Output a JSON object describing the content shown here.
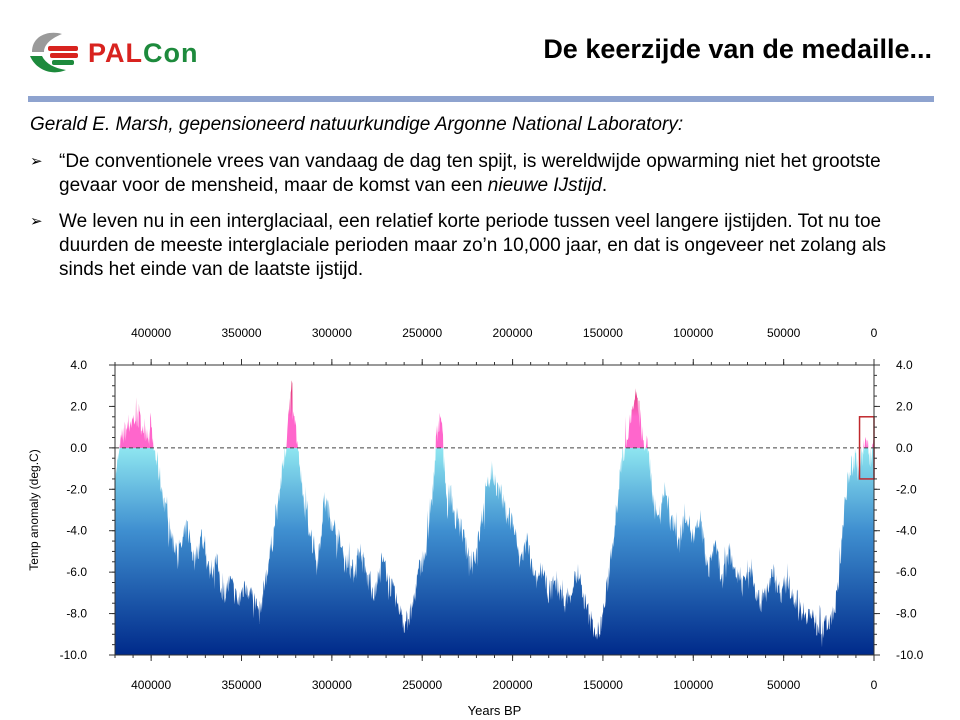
{
  "logo": {
    "part1": "PAL",
    "part2": "Con",
    "hand_colors": [
      "#d8231f",
      "#1d8a3c",
      "#9a9a9a"
    ]
  },
  "slide": {
    "title": "De keerzijde van de medaille...",
    "author": "Gerald E. Marsh, gepensioneerd natuurkundige Argonne National Laboratory:",
    "bullets": [
      {
        "text_before": "“De conventionele vrees van vandaag de dag ten spijt, is wereldwijde opwarming niet het grootste gevaar voor de mensheid, maar de komst van een ",
        "emphasis": "nieuwe IJstijd",
        "text_after": "."
      },
      {
        "text_before": "We leven nu in een interglaciaal, een relatief korte periode tussen veel langere ijstijden. Tot nu toe duurden de meeste interglaciale perioden maar zo’n 10,000 jaar, en dat is ongeveer net zolang als sinds het einde van de laatste ijstijd.",
        "emphasis": "",
        "text_after": ""
      }
    ]
  },
  "chart_data": {
    "type": "area",
    "xlabel": "Years BP",
    "ylabel": "Temp anomaly (deg.C)",
    "xlim": [
      420000,
      0
    ],
    "ylim": [
      -10,
      4
    ],
    "x_ticks": [
      400000,
      350000,
      300000,
      250000,
      200000,
      150000,
      100000,
      50000,
      0
    ],
    "y_ticks_left": [
      "4.0",
      "2.0",
      "0.0",
      "-2.0",
      "-4.0",
      "-6.0",
      "-8.0",
      "-10.0"
    ],
    "y_ticks_right": [
      "4.0",
      "2.0",
      "0.0",
      "-2.0",
      "-4.0",
      "-6.0",
      "-8.0",
      "-10.0"
    ],
    "reference_line": {
      "y": 0,
      "style": "dashed"
    },
    "highlight_box": {
      "x_range": [
        8000,
        0
      ],
      "y_range": [
        -1.5,
        1.5
      ],
      "color": "#c0282d"
    },
    "color_above_zero": "#ff66cc",
    "color_peak": "#c8102e",
    "color_top": "#8ee6f0",
    "color_bottom": "#002a8a",
    "x": [
      420000,
      416000,
      412000,
      408000,
      404000,
      400000,
      396000,
      392000,
      388000,
      384000,
      380000,
      376000,
      372000,
      368000,
      364000,
      360000,
      356000,
      352000,
      348000,
      344000,
      340000,
      336000,
      332000,
      328000,
      326000,
      324000,
      322000,
      320000,
      318000,
      316000,
      312000,
      308000,
      304000,
      300000,
      296000,
      292000,
      288000,
      284000,
      280000,
      276000,
      272000,
      268000,
      264000,
      260000,
      256000,
      252000,
      248000,
      244000,
      242000,
      240000,
      238000,
      236000,
      234000,
      232000,
      228000,
      224000,
      220000,
      216000,
      212000,
      208000,
      204000,
      200000,
      196000,
      192000,
      188000,
      184000,
      180000,
      176000,
      172000,
      168000,
      164000,
      160000,
      156000,
      152000,
      148000,
      144000,
      140000,
      136000,
      132000,
      130000,
      128000,
      126000,
      124000,
      122000,
      120000,
      116000,
      112000,
      108000,
      104000,
      100000,
      96000,
      92000,
      88000,
      84000,
      80000,
      76000,
      72000,
      68000,
      64000,
      60000,
      56000,
      52000,
      48000,
      44000,
      40000,
      36000,
      32000,
      28000,
      24000,
      20000,
      18000,
      16000,
      14000,
      12000,
      10000,
      8000,
      6000,
      4000,
      2000,
      0
    ],
    "y": [
      -1.5,
      0.5,
      1.2,
      1.5,
      1.0,
      0.6,
      -1.0,
      -3.0,
      -4.5,
      -5.0,
      -3.8,
      -5.5,
      -4.2,
      -6.0,
      -5.5,
      -7.0,
      -6.5,
      -7.5,
      -6.5,
      -7.2,
      -8.0,
      -6.0,
      -4.0,
      -1.5,
      -0.5,
      1.5,
      3.0,
      1.0,
      -0.8,
      -2.5,
      -4.0,
      -5.5,
      -2.5,
      -3.5,
      -4.5,
      -5.5,
      -6.0,
      -5.0,
      -6.5,
      -7.0,
      -5.5,
      -6.5,
      -7.5,
      -8.5,
      -8.0,
      -6.0,
      -5.0,
      -2.0,
      0.5,
      2.0,
      -0.5,
      -3.0,
      -2.0,
      -3.5,
      -4.0,
      -5.5,
      -5.0,
      -3.0,
      -1.0,
      -2.0,
      -3.0,
      -3.5,
      -5.5,
      -4.5,
      -6.5,
      -6.0,
      -7.0,
      -6.5,
      -7.5,
      -7.0,
      -6.0,
      -7.5,
      -8.5,
      -9.0,
      -7.0,
      -4.0,
      -1.0,
      1.0,
      2.5,
      1.8,
      0.5,
      0.2,
      -0.8,
      -2.5,
      -3.5,
      -2.0,
      -3.5,
      -4.5,
      -3.0,
      -4.5,
      -3.5,
      -6.0,
      -4.5,
      -6.5,
      -5.0,
      -6.0,
      -6.5,
      -5.5,
      -7.5,
      -7.0,
      -6.0,
      -7.0,
      -6.5,
      -7.2,
      -7.8,
      -8.0,
      -8.5,
      -8.8,
      -8.2,
      -7.0,
      -4.5,
      -2.5,
      -1.5,
      -0.8,
      -0.5,
      -0.8,
      -0.2,
      0.2,
      -0.4,
      0.0
    ]
  }
}
